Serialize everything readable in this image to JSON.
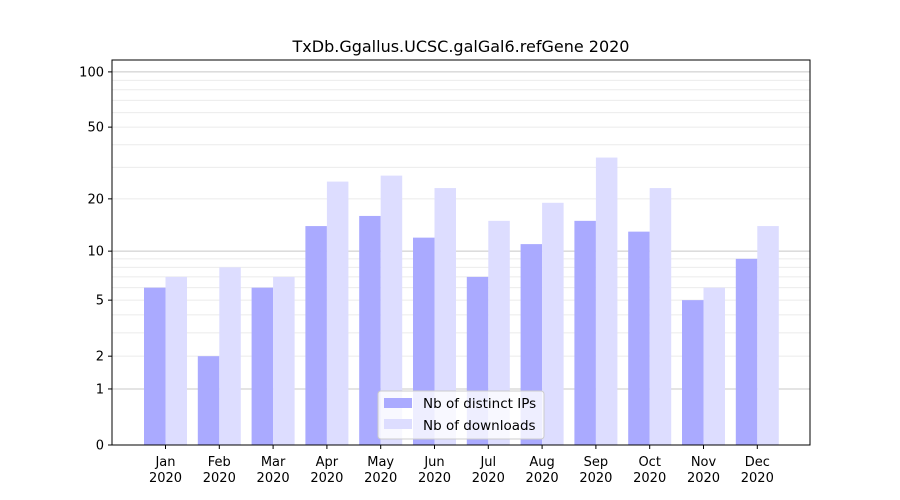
{
  "chart_data": {
    "type": "bar",
    "title": "TxDb.Ggallus.UCSC.galGal6.refGene 2020",
    "xlabel": "",
    "ylabel": "",
    "yscale": "log(1+y)",
    "ylim": [
      0,
      116
    ],
    "yticks": [
      0,
      1,
      2,
      5,
      10,
      20,
      50,
      100
    ],
    "grid": true,
    "legend_position": "bottom-center",
    "categories": [
      [
        "Jan",
        "2020"
      ],
      [
        "Feb",
        "2020"
      ],
      [
        "Mar",
        "2020"
      ],
      [
        "Apr",
        "2020"
      ],
      [
        "May",
        "2020"
      ],
      [
        "Jun",
        "2020"
      ],
      [
        "Jul",
        "2020"
      ],
      [
        "Aug",
        "2020"
      ],
      [
        "Sep",
        "2020"
      ],
      [
        "Oct",
        "2020"
      ],
      [
        "Nov",
        "2020"
      ],
      [
        "Dec",
        "2020"
      ]
    ],
    "series": [
      {
        "name": "Nb of distinct IPs",
        "color": "#aaaaff",
        "values": [
          6,
          2,
          6,
          14,
          16,
          12,
          7,
          11,
          15,
          13,
          5,
          9
        ]
      },
      {
        "name": "Nb of downloads",
        "color": "#ddddff",
        "values": [
          7,
          8,
          7,
          25,
          27,
          23,
          15,
          19,
          34,
          23,
          6,
          14
        ]
      }
    ]
  }
}
